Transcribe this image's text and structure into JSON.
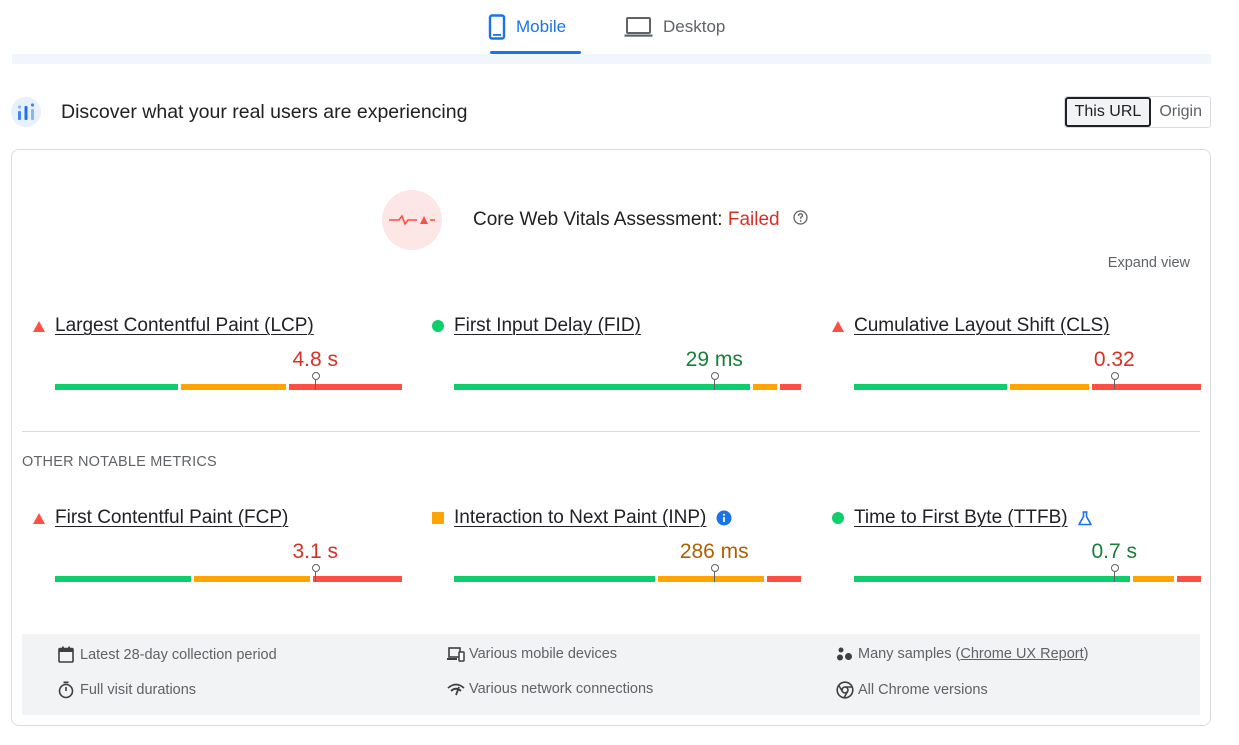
{
  "tabs": [
    {
      "label": "Mobile",
      "icon": "mobile-phone-icon",
      "active": true
    },
    {
      "label": "Desktop",
      "icon": "laptop-icon",
      "active": false
    }
  ],
  "crux": {
    "title": "Discover what your real users are experiencing",
    "logo_icon": "crux-logo-icon",
    "toggle": [
      {
        "label": "This URL",
        "active": true
      },
      {
        "label": "Origin",
        "active": false
      }
    ]
  },
  "assessment": {
    "label": "Core Web Vitals Assessment:",
    "status": "Failed",
    "status_color": "#d93025",
    "icon": "failed-heartbeat-icon",
    "help_icon": "help-circle-icon"
  },
  "expand_view": "Expand view",
  "colors": {
    "good": "#0cce6b",
    "needs_improvement": "#ffa400",
    "poor": "#ff4e42",
    "good_text": "#188038",
    "ni_text": "#b06000",
    "poor_text": "#d93025"
  },
  "core_metrics": [
    {
      "name": "Largest Contentful Paint (LCP)",
      "value": "4.8 s",
      "rating": "poor",
      "distribution": {
        "good": 0.36,
        "needs_improvement": 0.31,
        "poor": 0.33
      },
      "p75_marker": 0.75
    },
    {
      "name": "First Input Delay (FID)",
      "value": "29 ms",
      "rating": "good",
      "distribution": {
        "good": 0.85,
        "needs_improvement": 0.07,
        "poor": 0.06
      },
      "p75_marker": 0.75
    },
    {
      "name": "Cumulative Layout Shift (CLS)",
      "value": "0.32",
      "rating": "poor",
      "distribution": {
        "good": 0.45,
        "needs_improvement": 0.23,
        "poor": 0.32
      },
      "p75_marker": 0.75
    }
  ],
  "other_label": "OTHER NOTABLE METRICS",
  "other_metrics": [
    {
      "name": "First Contentful Paint (FCP)",
      "value": "3.1 s",
      "rating": "poor",
      "extra_icon": "",
      "distribution": {
        "good": 0.4,
        "needs_improvement": 0.34,
        "poor": 0.26
      },
      "p75_marker": 0.75
    },
    {
      "name": "Interaction to Next Paint (INP)",
      "value": "286 ms",
      "rating": "needs_improvement",
      "extra_icon": "info-icon",
      "distribution": {
        "good": 0.59,
        "needs_improvement": 0.31,
        "poor": 0.1
      },
      "p75_marker": 0.75
    },
    {
      "name": "Time to First Byte (TTFB)",
      "value": "0.7 s",
      "rating": "good",
      "extra_icon": "experimental-flask-icon",
      "distribution": {
        "good": 0.8,
        "needs_improvement": 0.12,
        "poor": 0.07
      },
      "p75_marker": 0.75
    }
  ],
  "footer": {
    "items": [
      {
        "icon": "calendar-icon",
        "text": "Latest 28-day collection period"
      },
      {
        "icon": "devices-icon",
        "text": "Various mobile devices"
      },
      {
        "icon": "samples-icon",
        "text": "Many samples (",
        "link": "Chrome UX Report",
        "suffix": ")"
      },
      {
        "icon": "timer-icon",
        "text": "Full visit durations"
      },
      {
        "icon": "network-icon",
        "text": "Various network connections"
      },
      {
        "icon": "chrome-icon",
        "text": "All Chrome versions"
      }
    ]
  }
}
